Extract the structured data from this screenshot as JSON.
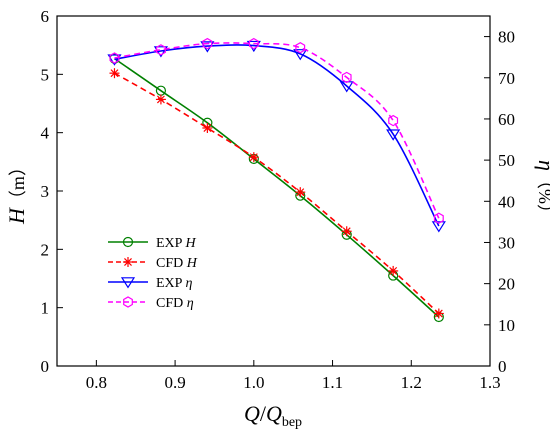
{
  "chart_data": {
    "type": "line",
    "xlabel": {
      "main": "Q",
      "sep": "/",
      "sym": "Q",
      "sub": "bep"
    },
    "ylabel_left": {
      "sym": "H",
      "unit": "（m）"
    },
    "ylabel_right": {
      "sym": "η",
      "unit": "（%）"
    },
    "xlim": [
      0.75,
      1.3
    ],
    "ylim_left": [
      0,
      6
    ],
    "ylim_right": [
      0,
      85
    ],
    "x_ticks": [
      "0.8",
      "0.9",
      "1.0",
      "1.1",
      "1.2",
      "1.3"
    ],
    "y_left_ticks": [
      "0",
      "1",
      "2",
      "3",
      "4",
      "5",
      "6"
    ],
    "y_right_ticks": [
      "0",
      "10",
      "20",
      "30",
      "40",
      "50",
      "60",
      "70",
      "80"
    ],
    "grid": false,
    "legend_position": "bottom-left",
    "series": [
      {
        "name": "EXP H",
        "label_text": "EXP",
        "label_sym": "H",
        "axis": "left",
        "color": "#008000",
        "dash": "solid",
        "marker": "circle",
        "x": [
          0.823,
          0.882,
          0.941,
          1.0,
          1.059,
          1.118,
          1.177,
          1.235
        ],
        "values": [
          5.27,
          4.72,
          4.17,
          3.55,
          2.92,
          2.25,
          1.55,
          0.84
        ]
      },
      {
        "name": "CFD H",
        "label_text": "CFD",
        "label_sym": "H",
        "axis": "left",
        "color": "#ff0000",
        "dash": "dashed",
        "marker": "asterisk",
        "x": [
          0.823,
          0.882,
          0.941,
          1.0,
          1.059,
          1.118,
          1.177,
          1.235
        ],
        "values": [
          5.02,
          4.57,
          4.08,
          3.58,
          2.98,
          2.31,
          1.63,
          0.9
        ]
      },
      {
        "name": "EXP η",
        "label_text": "EXP",
        "label_sym": "η",
        "axis": "right",
        "color": "#0000ff",
        "dash": "solid",
        "marker": "triangle-down",
        "x": [
          0.823,
          0.882,
          0.941,
          1.0,
          1.059,
          1.118,
          1.177,
          1.235
        ],
        "values": [
          74.5,
          76.5,
          77.7,
          77.8,
          75.8,
          68.0,
          56.3,
          34.0
        ]
      },
      {
        "name": "CFD η",
        "label_text": "CFD",
        "label_sym": "η",
        "axis": "right",
        "color": "#ff00ff",
        "dash": "dashed",
        "marker": "hexagon",
        "x": [
          0.823,
          0.882,
          0.941,
          1.0,
          1.059,
          1.118,
          1.177,
          1.235
        ],
        "values": [
          74.8,
          76.8,
          78.3,
          78.3,
          77.3,
          70.1,
          59.6,
          35.9
        ]
      }
    ]
  }
}
